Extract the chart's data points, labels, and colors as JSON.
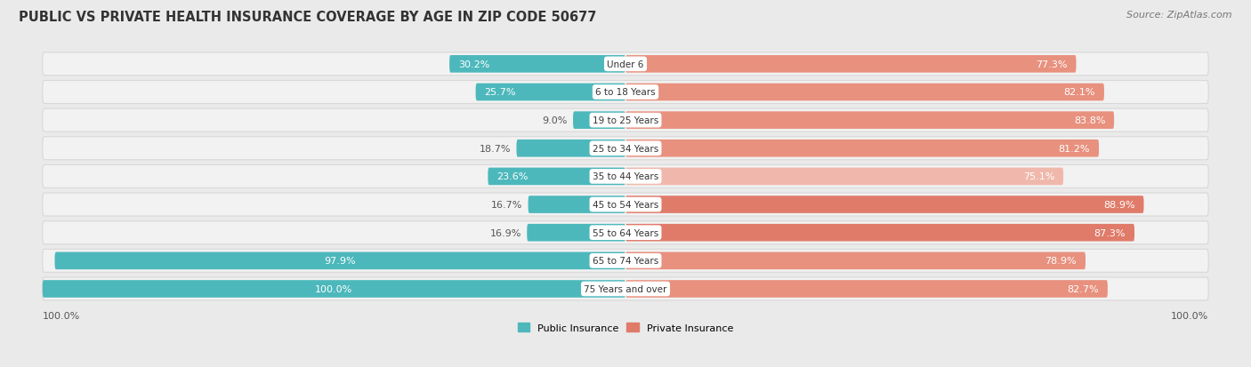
{
  "title": "PUBLIC VS PRIVATE HEALTH INSURANCE COVERAGE BY AGE IN ZIP CODE 50677",
  "source": "Source: ZipAtlas.com",
  "categories": [
    "Under 6",
    "6 to 18 Years",
    "19 to 25 Years",
    "25 to 34 Years",
    "35 to 44 Years",
    "45 to 54 Years",
    "55 to 64 Years",
    "65 to 74 Years",
    "75 Years and over"
  ],
  "public_values": [
    30.2,
    25.7,
    9.0,
    18.7,
    23.6,
    16.7,
    16.9,
    97.9,
    100.0
  ],
  "private_values": [
    77.3,
    82.1,
    83.8,
    81.2,
    75.1,
    88.9,
    87.3,
    78.9,
    82.7
  ],
  "public_color": "#4db8bc",
  "private_color_strong": "#e07b6a",
  "private_color_medium": "#e8917e",
  "private_color_light": "#f0b8ac",
  "bg_color": "#eaeaea",
  "row_bg_color": "#f2f2f2",
  "row_border_color": "#d8d8d8",
  "center_label_bg": "#ffffff",
  "label_public": "Public Insurance",
  "label_private": "Private Insurance",
  "title_fontsize": 10.5,
  "source_fontsize": 8,
  "bar_label_fontsize": 8,
  "category_fontsize": 7.5,
  "legend_fontsize": 8,
  "axis_label_fontsize": 8
}
